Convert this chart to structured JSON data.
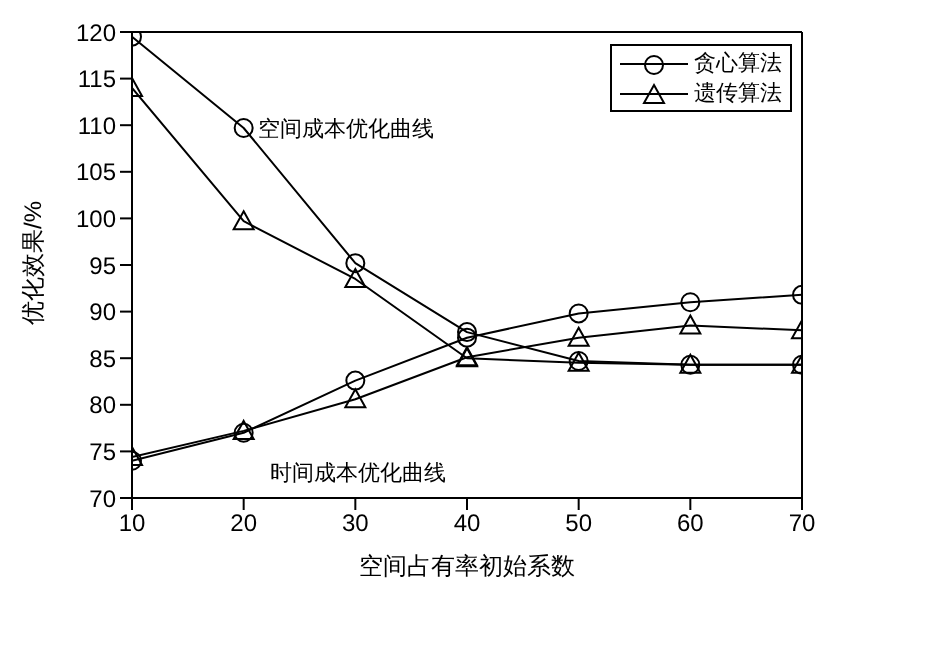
{
  "chart_data": {
    "type": "line",
    "xlabel": "空间占有率初始系数",
    "ylabel": "优化效果/%",
    "x": [
      10,
      20,
      30,
      40,
      50,
      60,
      70
    ],
    "xlim": [
      10,
      70
    ],
    "xticks": [
      10,
      20,
      30,
      40,
      50,
      60,
      70
    ],
    "ylim": [
      70,
      120
    ],
    "yticks": [
      70,
      75,
      80,
      85,
      90,
      95,
      100,
      105,
      110,
      115,
      120
    ],
    "grid": false,
    "legend": "top right",
    "series": [
      {
        "name": "贪心算法",
        "color": "#000000",
        "marker": "circle",
        "values": [
          119.5,
          109.7,
          95.2,
          87.8,
          84.7,
          84.3,
          84.3
        ]
      },
      {
        "name": "遗传算法",
        "color": "#000000",
        "marker": "triangle",
        "values": [
          114,
          99.7,
          93.5,
          85,
          84.5,
          84.3,
          84.3
        ]
      },
      {
        "color": "#000000",
        "marker": "circle",
        "values": [
          74,
          77,
          82.6,
          87.2,
          89.8,
          91,
          91.8
        ]
      },
      {
        "color": "#000000",
        "marker": "triangle",
        "values": [
          74.4,
          77.2,
          80.6,
          85.1,
          87.2,
          88.5,
          88
        ]
      }
    ],
    "annotations": [
      {
        "text": "空间成本优化曲线",
        "x": 20,
        "y": 109.7
      },
      "时间成本优化曲线"
    ]
  }
}
